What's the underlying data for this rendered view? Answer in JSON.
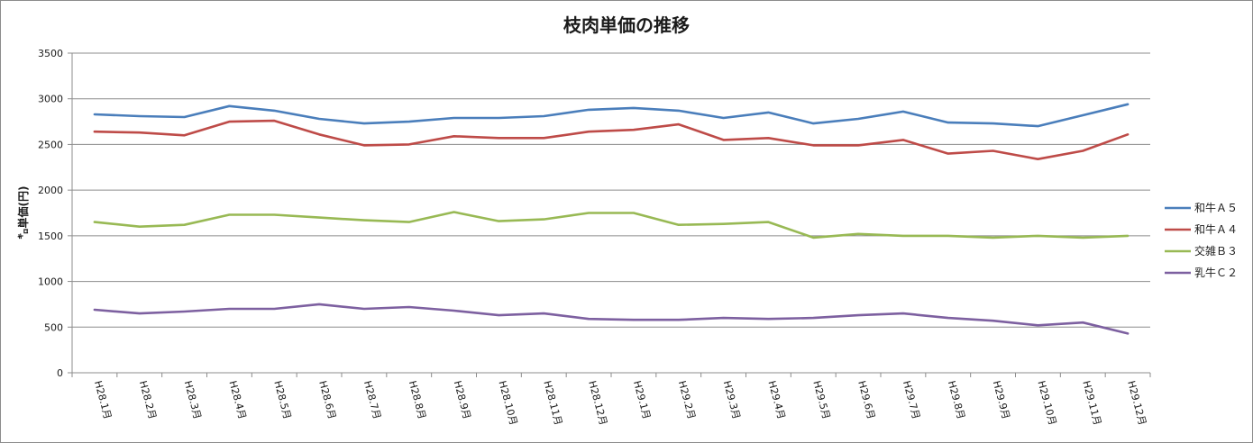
{
  "chart_data": {
    "type": "line",
    "title": "枝肉単価の推移",
    "xlabel": "",
    "ylabel": "㌔単価(円)",
    "ylim": [
      0,
      3500
    ],
    "yticks": [
      0,
      500,
      1000,
      1500,
      2000,
      2500,
      3000,
      3500
    ],
    "grid": true,
    "legend_position": "right",
    "categories": [
      "H28.1月",
      "H28.2月",
      "H28.3月",
      "H28.4月",
      "H28.5月",
      "H28.6月",
      "H28.7月",
      "H28.8月",
      "H28.9月",
      "H28.10月",
      "H28.11月",
      "H28.12月",
      "H29.1月",
      "H29.2月",
      "H29.3月",
      "H29.4月",
      "H29.5月",
      "H29.6月",
      "H29.7月",
      "H29.8月",
      "H29.9月",
      "H29.10月",
      "H29.11月",
      "H29.12月"
    ],
    "series": [
      {
        "name": "和牛Ａ５",
        "color": "#4a7ebb",
        "values": [
          2830,
          2810,
          2800,
          2920,
          2870,
          2780,
          2730,
          2750,
          2790,
          2790,
          2810,
          2880,
          2900,
          2870,
          2790,
          2850,
          2730,
          2780,
          2860,
          2740,
          2730,
          2700,
          2820,
          2940
        ]
      },
      {
        "name": "和牛Ａ４",
        "color": "#be4b48",
        "values": [
          2640,
          2630,
          2600,
          2750,
          2760,
          2610,
          2490,
          2500,
          2590,
          2570,
          2570,
          2640,
          2660,
          2720,
          2550,
          2570,
          2490,
          2490,
          2550,
          2400,
          2430,
          2340,
          2430,
          2610
        ]
      },
      {
        "name": "交雑Ｂ３",
        "color": "#98b954",
        "values": [
          1650,
          1600,
          1620,
          1730,
          1730,
          1700,
          1670,
          1650,
          1760,
          1660,
          1680,
          1750,
          1750,
          1620,
          1630,
          1650,
          1480,
          1520,
          1500,
          1500,
          1480,
          1500,
          1480,
          1500
        ]
      },
      {
        "name": "乳牛Ｃ２",
        "color": "#7d60a0",
        "values": [
          690,
          650,
          670,
          700,
          700,
          750,
          700,
          720,
          680,
          630,
          650,
          590,
          580,
          580,
          600,
          590,
          600,
          630,
          650,
          600,
          570,
          520,
          550,
          430
        ]
      }
    ]
  }
}
